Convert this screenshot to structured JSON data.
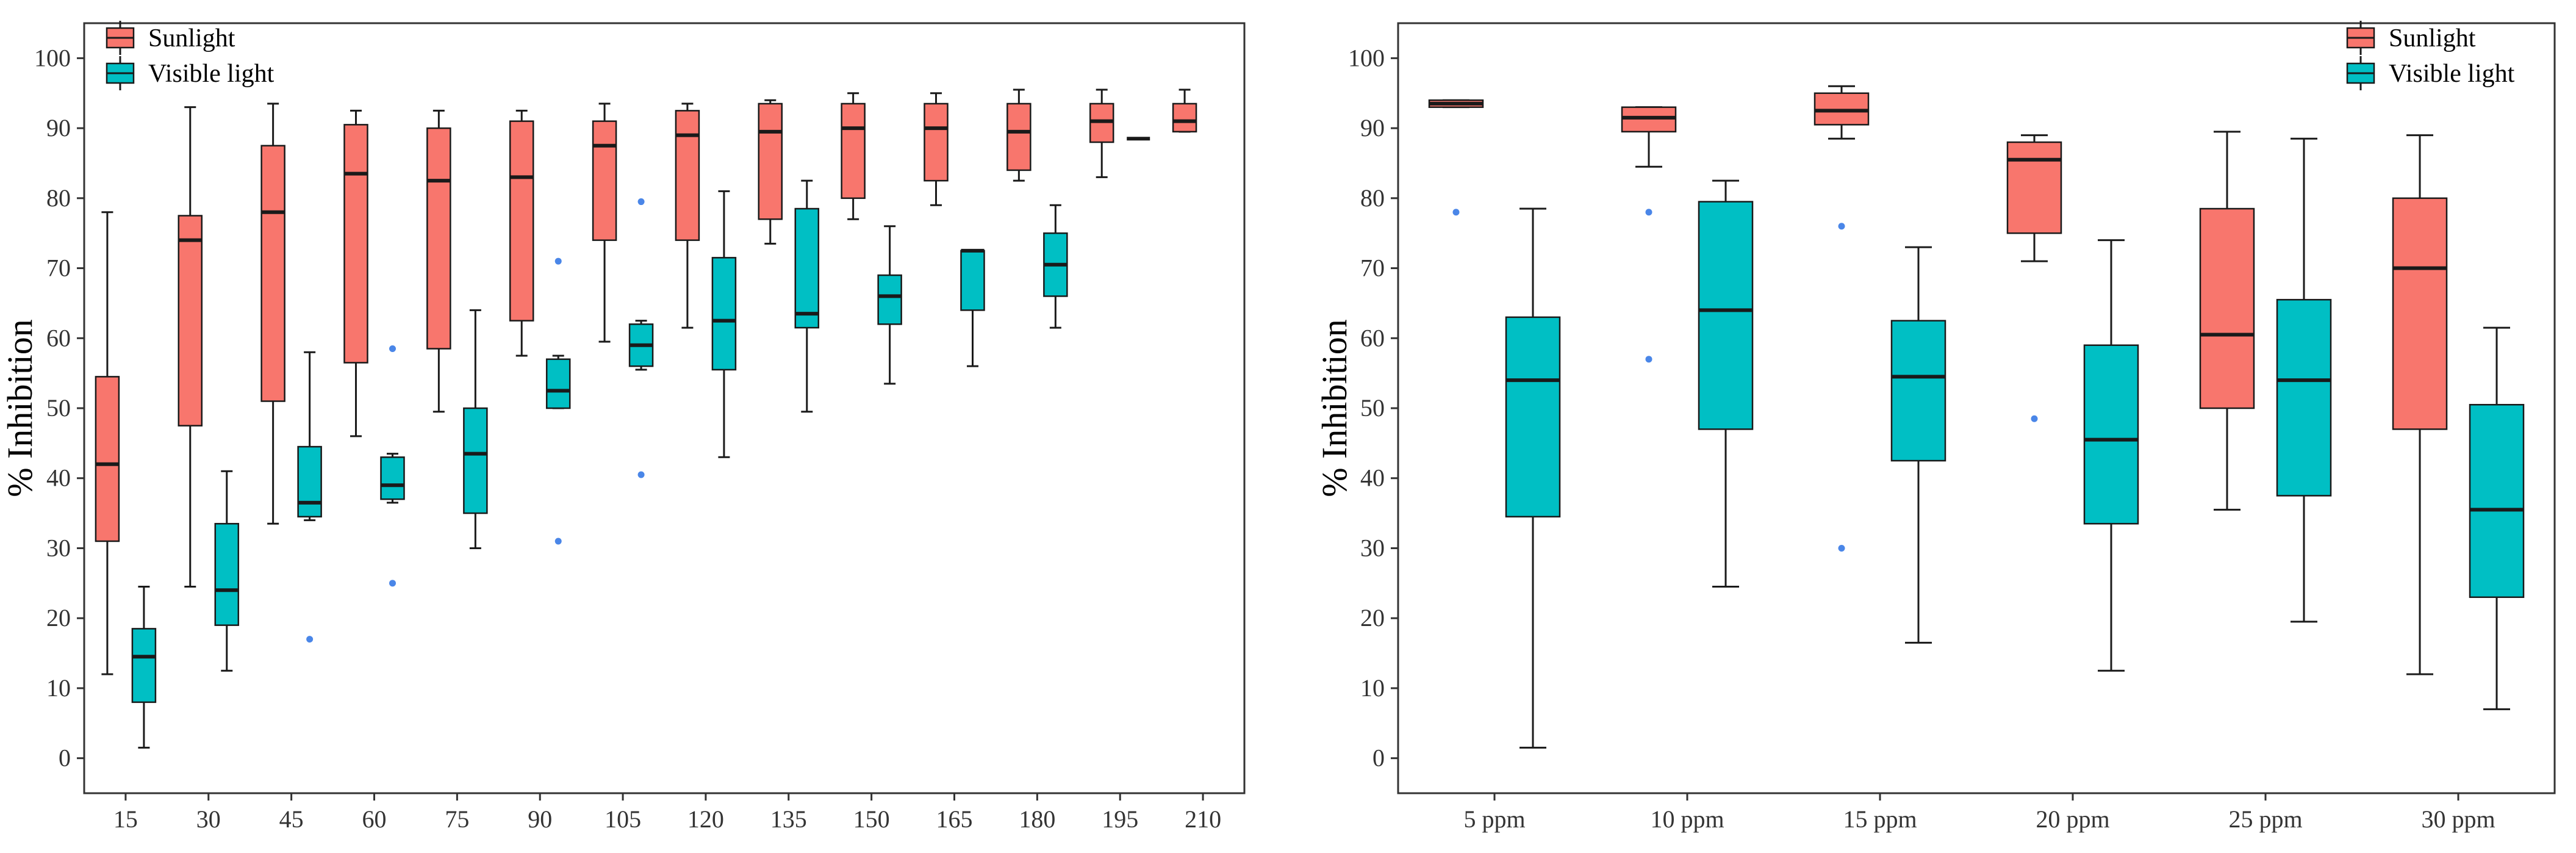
{
  "chart_data": [
    {
      "type": "box",
      "ylabel": "% Inhibition",
      "xlabel": "",
      "ylim": [
        -5,
        105
      ],
      "yticks": [
        "0",
        "10",
        "20",
        "30",
        "40",
        "50",
        "60",
        "70",
        "80",
        "90",
        "100"
      ],
      "categories": [
        "15",
        "30",
        "45",
        "60",
        "75",
        "90",
        "105",
        "120",
        "135",
        "150",
        "165",
        "180",
        "195",
        "210"
      ],
      "legend_position": "top-left",
      "series": [
        {
          "name": "Sunlight",
          "color": "#F8766D",
          "boxes": [
            {
              "category": "15",
              "whisker_low": 12,
              "q1": 31,
              "median": 42,
              "q3": 54.5,
              "whisker_high": 78,
              "outliers": []
            },
            {
              "category": "30",
              "whisker_low": 24.5,
              "q1": 47.5,
              "median": 74,
              "q3": 77.5,
              "whisker_high": 93,
              "outliers": []
            },
            {
              "category": "45",
              "whisker_low": 33.5,
              "q1": 51,
              "median": 78,
              "q3": 87.5,
              "whisker_high": 93.5,
              "outliers": []
            },
            {
              "category": "60",
              "whisker_low": 46,
              "q1": 56.5,
              "median": 83.5,
              "q3": 90.5,
              "whisker_high": 92.5,
              "outliers": []
            },
            {
              "category": "75",
              "whisker_low": 49.5,
              "q1": 58.5,
              "median": 82.5,
              "q3": 90,
              "whisker_high": 92.5,
              "outliers": []
            },
            {
              "category": "90",
              "whisker_low": 57.5,
              "q1": 62.5,
              "median": 83,
              "q3": 91,
              "whisker_high": 92.5,
              "outliers": []
            },
            {
              "category": "105",
              "whisker_low": 59.5,
              "q1": 74,
              "median": 87.5,
              "q3": 91,
              "whisker_high": 93.5,
              "outliers": []
            },
            {
              "category": "120",
              "whisker_low": 61.5,
              "q1": 74,
              "median": 89,
              "q3": 92.5,
              "whisker_high": 93.5,
              "outliers": []
            },
            {
              "category": "135",
              "whisker_low": 73.5,
              "q1": 77,
              "median": 89.5,
              "q3": 93.5,
              "whisker_high": 94,
              "outliers": []
            },
            {
              "category": "150",
              "whisker_low": 77,
              "q1": 80,
              "median": 90,
              "q3": 93.5,
              "whisker_high": 95,
              "outliers": []
            },
            {
              "category": "165",
              "whisker_low": 79,
              "q1": 82.5,
              "median": 90,
              "q3": 93.5,
              "whisker_high": 95,
              "outliers": []
            },
            {
              "category": "180",
              "whisker_low": 82.5,
              "q1": 84,
              "median": 89.5,
              "q3": 93.5,
              "whisker_high": 95.5,
              "outliers": []
            },
            {
              "category": "195",
              "whisker_low": 83,
              "q1": 88,
              "median": 91,
              "q3": 93.5,
              "whisker_high": 95.5,
              "outliers": []
            },
            {
              "category": "210",
              "whisker_low": 89.5,
              "q1": 89.5,
              "median": 91,
              "q3": 93.5,
              "whisker_high": 95.5,
              "outliers": []
            }
          ]
        },
        {
          "name": "Visible light",
          "color": "#00BFC4",
          "boxes": [
            {
              "category": "15",
              "whisker_low": 1.5,
              "q1": 8,
              "median": 14.5,
              "q3": 18.5,
              "whisker_high": 24.5,
              "outliers": []
            },
            {
              "category": "30",
              "whisker_low": 12.5,
              "q1": 19,
              "median": 24,
              "q3": 33.5,
              "whisker_high": 41,
              "outliers": []
            },
            {
              "category": "45",
              "whisker_low": 34,
              "q1": 34.5,
              "median": 36.5,
              "q3": 44.5,
              "whisker_high": 58,
              "outliers": [
                17
              ]
            },
            {
              "category": "60",
              "whisker_low": 36.5,
              "q1": 37,
              "median": 39,
              "q3": 43,
              "whisker_high": 43.5,
              "outliers": [
                25,
                58.5
              ]
            },
            {
              "category": "75",
              "whisker_low": 30,
              "q1": 35,
              "median": 43.5,
              "q3": 50,
              "whisker_high": 64,
              "outliers": []
            },
            {
              "category": "90",
              "whisker_low": 50,
              "q1": 50,
              "median": 52.5,
              "q3": 57,
              "whisker_high": 57.5,
              "outliers": [
                31,
                71
              ]
            },
            {
              "category": "105",
              "whisker_low": 55.5,
              "q1": 56,
              "median": 59,
              "q3": 62,
              "whisker_high": 62.5,
              "outliers": [
                40.5,
                79.5
              ]
            },
            {
              "category": "120",
              "whisker_low": 43,
              "q1": 55.5,
              "median": 62.5,
              "q3": 71.5,
              "whisker_high": 81,
              "outliers": []
            },
            {
              "category": "135",
              "whisker_low": 49.5,
              "q1": 61.5,
              "median": 63.5,
              "q3": 78.5,
              "whisker_high": 82.5,
              "outliers": []
            },
            {
              "category": "150",
              "whisker_low": 53.5,
              "q1": 62,
              "median": 66,
              "q3": 69,
              "whisker_high": 76,
              "outliers": []
            },
            {
              "category": "165",
              "whisker_low": 56,
              "q1": 64,
              "median": 72.5,
              "q3": 72.5,
              "whisker_high": 72.5,
              "outliers": []
            },
            {
              "category": "180",
              "whisker_low": 61.5,
              "q1": 66,
              "median": 70.5,
              "q3": 75,
              "whisker_high": 79,
              "outliers": []
            },
            {
              "category": "195",
              "whisker_low": null,
              "q1": null,
              "median": 88.5,
              "q3": null,
              "whisker_high": null,
              "outliers": []
            },
            {
              "category": "210",
              "whisker_low": null,
              "q1": null,
              "median": null,
              "q3": null,
              "whisker_high": null,
              "outliers": []
            }
          ]
        }
      ]
    },
    {
      "type": "box",
      "ylabel": "% Inhibition",
      "xlabel": "",
      "ylim": [
        -5,
        105
      ],
      "yticks": [
        "0",
        "10",
        "20",
        "30",
        "40",
        "50",
        "60",
        "70",
        "80",
        "90",
        "100"
      ],
      "categories": [
        "5 ppm",
        "10 ppm",
        "15 ppm",
        "20 ppm",
        "25 ppm",
        "30 ppm"
      ],
      "legend_position": "top-right",
      "series": [
        {
          "name": "Sunlight",
          "color": "#F8766D",
          "boxes": [
            {
              "category": "5 ppm",
              "whisker_low": 93,
              "q1": 93,
              "median": 93.5,
              "q3": 94,
              "whisker_high": 94,
              "outliers": [
                78
              ]
            },
            {
              "category": "10 ppm",
              "whisker_low": 84.5,
              "q1": 89.5,
              "median": 91.5,
              "q3": 93,
              "whisker_high": 93,
              "outliers": [
                57,
                78
              ]
            },
            {
              "category": "15 ppm",
              "whisker_low": 88.5,
              "q1": 90.5,
              "median": 92.5,
              "q3": 95,
              "whisker_high": 96,
              "outliers": [
                30,
                76
              ]
            },
            {
              "category": "20 ppm",
              "whisker_low": 71,
              "q1": 75,
              "median": 85.5,
              "q3": 88,
              "whisker_high": 89,
              "outliers": [
                48.5
              ]
            },
            {
              "category": "25 ppm",
              "whisker_low": 35.5,
              "q1": 50,
              "median": 60.5,
              "q3": 78.5,
              "whisker_high": 89.5,
              "outliers": []
            },
            {
              "category": "30 ppm",
              "whisker_low": 12,
              "q1": 47,
              "median": 70,
              "q3": 80,
              "whisker_high": 89,
              "outliers": []
            }
          ]
        },
        {
          "name": "Visible light",
          "color": "#00BFC4",
          "boxes": [
            {
              "category": "5 ppm",
              "whisker_low": 1.5,
              "q1": 34.5,
              "median": 54,
              "q3": 63,
              "whisker_high": 78.5,
              "outliers": []
            },
            {
              "category": "10 ppm",
              "whisker_low": 24.5,
              "q1": 47,
              "median": 64,
              "q3": 79.5,
              "whisker_high": 82.5,
              "outliers": []
            },
            {
              "category": "15 ppm",
              "whisker_low": 16.5,
              "q1": 42.5,
              "median": 54.5,
              "q3": 62.5,
              "whisker_high": 73,
              "outliers": []
            },
            {
              "category": "20 ppm",
              "whisker_low": 12.5,
              "q1": 33.5,
              "median": 45.5,
              "q3": 59,
              "whisker_high": 74,
              "outliers": []
            },
            {
              "category": "25 ppm",
              "whisker_low": 19.5,
              "q1": 37.5,
              "median": 54,
              "q3": 65.5,
              "whisker_high": 88.5,
              "outliers": []
            },
            {
              "category": "30 ppm",
              "whisker_low": 7,
              "q1": 23,
              "median": 35.5,
              "q3": 50.5,
              "whisker_high": 61.5,
              "outliers": []
            }
          ]
        }
      ]
    }
  ],
  "colors": {
    "outlier": "#4A86E8",
    "axis": "#333333",
    "box_stroke": "#1a1a1a"
  }
}
